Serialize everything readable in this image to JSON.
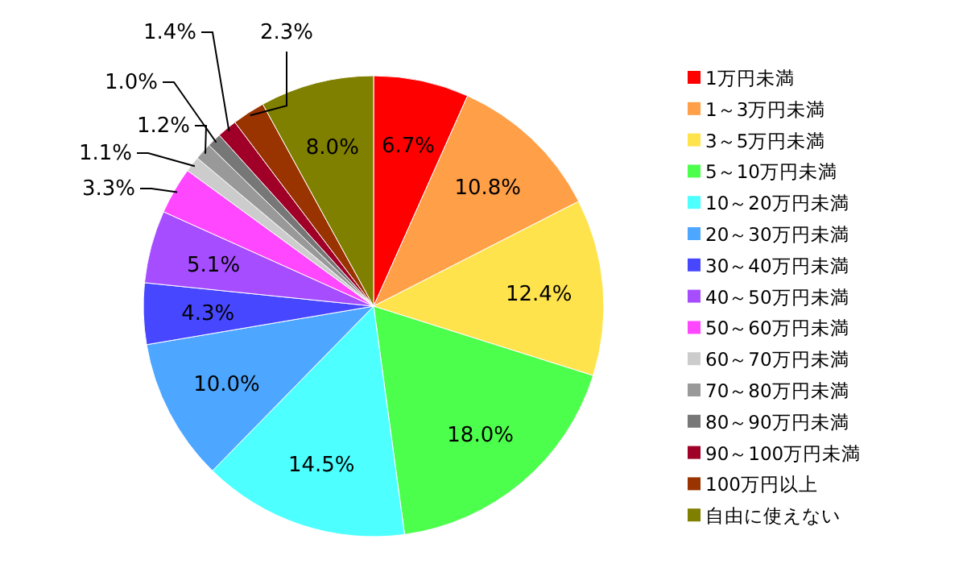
{
  "chart_data": {
    "type": "pie",
    "categories": [
      "1万円未満",
      "1～3万円未満",
      "3～5万円未満",
      "5～10万円未満",
      "10～20万円未満",
      "20～30万円未満",
      "30～40万円未満",
      "40～50万円未満",
      "50～60万円未満",
      "60～70万円未満",
      "70～80万円未満",
      "80～90万円未満",
      "90～100万円未満",
      "100万円以上",
      "自由に使えない"
    ],
    "values": [
      6.7,
      10.8,
      12.4,
      18.0,
      14.5,
      10.0,
      4.3,
      5.1,
      3.3,
      1.1,
      1.2,
      1.0,
      1.4,
      2.3,
      8.0
    ],
    "colors": [
      "#ff0000",
      "#ff9f47",
      "#ffe34d",
      "#4dff4d",
      "#4dffff",
      "#4da6ff",
      "#4747ff",
      "#a64dff",
      "#ff47ff",
      "#cccccc",
      "#999999",
      "#777777",
      "#a00028",
      "#993300",
      "#808000"
    ],
    "value_labels": [
      "6.7%",
      "10.8%",
      "12.4%",
      "18.0%",
      "14.5%",
      "10.0%",
      "4.3%",
      "5.1%",
      "3.3%",
      "1.1%",
      "1.2%",
      "1.0%",
      "1.4%",
      "2.3%",
      "8.0%"
    ],
    "legend": "right"
  }
}
